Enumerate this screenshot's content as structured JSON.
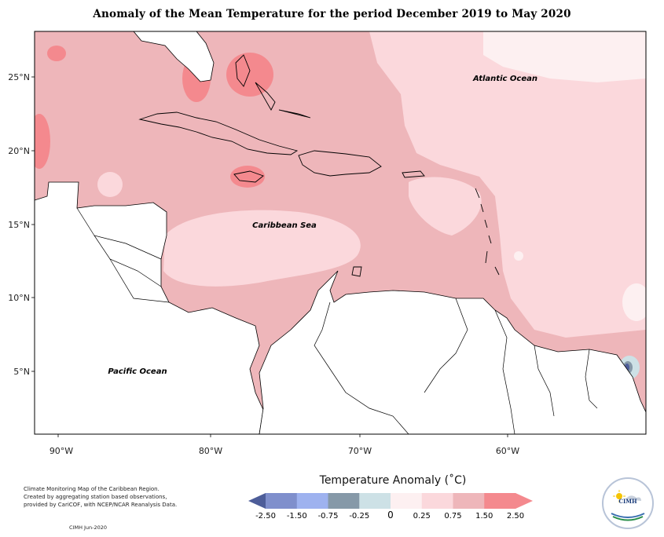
{
  "title": "Anomaly of the Mean Temperature for the period December 2019 to May 2020",
  "axes": {
    "lat_labels": [
      "25°N",
      "20°N",
      "15°N",
      "10°N",
      "5°N"
    ],
    "lon_labels": [
      "90°W",
      "80°W",
      "70°W",
      "60°W"
    ]
  },
  "map_labels": {
    "atlantic": "Atlantic Ocean",
    "caribbean": "Caribbean Sea",
    "pacific": "Pacific Ocean"
  },
  "legend": {
    "title": "Temperature Anomaly (˚C)",
    "ticks": [
      "-2.50",
      "-1.50",
      "-0.75",
      "-0.25",
      "0",
      "0.25",
      "0.75",
      "1.50",
      "2.50"
    ],
    "bins": [
      {
        "color": "#4d5d99"
      },
      {
        "color": "#7f8fcc"
      },
      {
        "color": "#9eb2ef"
      },
      {
        "color": "#8699a8"
      },
      {
        "color": "#cde1e6"
      },
      {
        "color": "#fdf0f1"
      },
      {
        "color": "#fbd8dc"
      },
      {
        "color": "#eeb6ba"
      },
      {
        "color": "#f4898e"
      },
      {
        "color": "#f4898e"
      }
    ]
  },
  "credits": [
    "Climate Monitoring Map of the Caribbean Region.",
    "Created by aggregating station based observations,",
    "provided by CariCOF, with NCEP/NCAR Reanalysis Data."
  ],
  "stamp": "CIMH  Jun-2020",
  "logo_text": "CIMH"
}
